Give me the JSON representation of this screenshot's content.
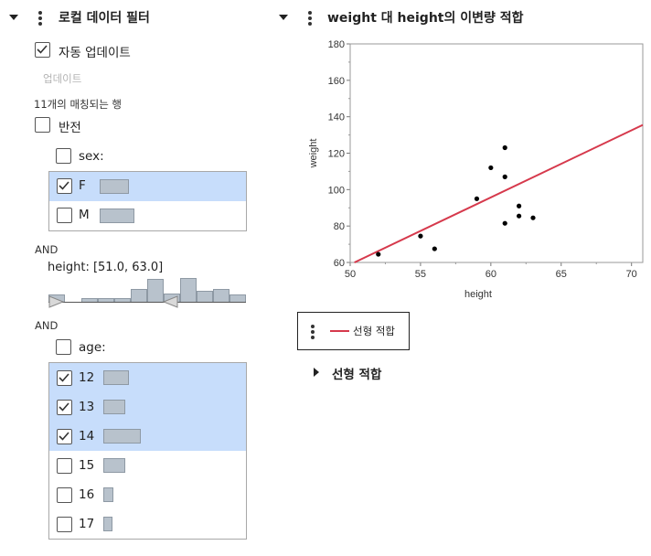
{
  "filter_panel": {
    "title": "로컬 데이터 필터",
    "auto_update_label": "자동 업데이트",
    "auto_update_checked": true,
    "update_button": "업데이트",
    "matched_rows": "11개의 매칭되는 행",
    "invert_label": "반전",
    "invert_checked": false,
    "and_label_1": "AND",
    "and_label_2": "AND",
    "sex": {
      "label": "sex:",
      "items": [
        {
          "label": "F",
          "checked": true,
          "count_frac": 0.62
        },
        {
          "label": "M",
          "checked": false,
          "count_frac": 0.74
        }
      ]
    },
    "height": {
      "label": "height: [51.0, 63.0]",
      "range": [
        51.0,
        63.0
      ],
      "histogram": [
        0.3,
        0.0,
        0.15,
        0.15,
        0.15,
        0.55,
        0.95,
        0.35,
        1.0,
        0.45,
        0.55,
        0.3
      ]
    },
    "age": {
      "label": "age:",
      "items": [
        {
          "label": "12",
          "checked": true,
          "count_frac": 0.53
        },
        {
          "label": "13",
          "checked": true,
          "count_frac": 0.47
        },
        {
          "label": "14",
          "checked": true,
          "count_frac": 0.79
        },
        {
          "label": "15",
          "checked": false,
          "count_frac": 0.47
        },
        {
          "label": "16",
          "checked": false,
          "count_frac": 0.22
        },
        {
          "label": "17",
          "checked": false,
          "count_frac": 0.2
        }
      ]
    }
  },
  "plot_panel": {
    "title": "weight 대 height의 이변량 적합",
    "legend_label": "선형 적합",
    "linear_fit_label": "선형 적합",
    "colors": {
      "fit_line": "#d6394c",
      "point": "#000000",
      "selection": "#c7ddfb"
    }
  },
  "chart_data": {
    "type": "scatter",
    "xlabel": "height",
    "ylabel": "weight",
    "xlim": [
      50,
      70.8
    ],
    "ylim": [
      60,
      180
    ],
    "xticks": [
      50,
      55,
      60,
      65,
      70
    ],
    "yticks": [
      60,
      80,
      100,
      120,
      140,
      160,
      180
    ],
    "points": [
      {
        "x": 52,
        "y": 64.5
      },
      {
        "x": 55,
        "y": 74.5
      },
      {
        "x": 56,
        "y": 67.5
      },
      {
        "x": 59,
        "y": 95
      },
      {
        "x": 60,
        "y": 112
      },
      {
        "x": 61,
        "y": 123
      },
      {
        "x": 61,
        "y": 107
      },
      {
        "x": 61,
        "y": 81.5
      },
      {
        "x": 62,
        "y": 91
      },
      {
        "x": 62,
        "y": 85.5
      },
      {
        "x": 63,
        "y": 84.5
      }
    ],
    "fit_line": {
      "x": [
        50.3,
        70.8
      ],
      "y": [
        60,
        135.5
      ]
    }
  }
}
